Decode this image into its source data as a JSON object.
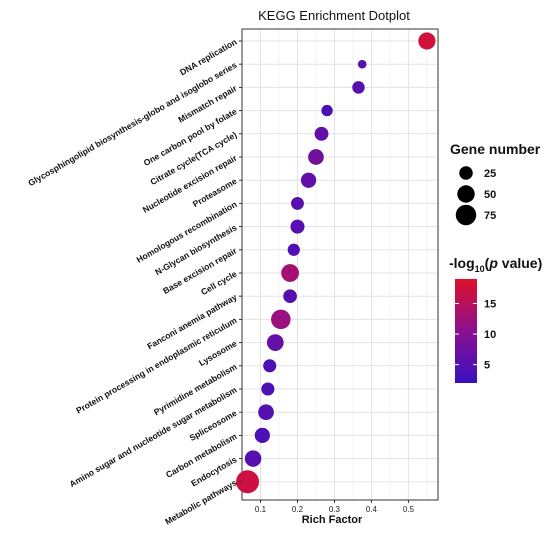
{
  "chart_data": {
    "type": "scatter",
    "title": "KEGG Enrichment Dotplot",
    "xlabel": "Rich Factor",
    "ylabel": "",
    "xlim": [
      0.05,
      0.58
    ],
    "x_ticks": [
      0.1,
      0.2,
      0.3,
      0.4,
      0.5
    ],
    "x_tick_labels": [
      "0.1",
      "0.2",
      "0.3",
      "0.4",
      "0.5"
    ],
    "grid": true,
    "categories": [
      "DNA replication",
      "Glycosphingolipid biosynthesis-globo and isoglobo series",
      "Mismatch repair",
      "One carbon pool by folate",
      "Citrate cycle(TCA cycle)",
      "Nucleotide excision repair",
      "Proteasome",
      "Homologous recombination",
      "N-Glycan biosynthesis",
      "Base excision repair",
      "Cell cycle",
      "Fanconi anemia pathway",
      "Protein processing in endoplasmic reticulum",
      "Lysosome",
      "Pyrimidine metabolism",
      "Amino sugar and nucleotide sugar metabolism",
      "Spliceosome",
      "Carbon metabolism",
      "Endocytosis",
      "Metabolic pathways"
    ],
    "rich_factor": [
      0.55,
      0.375,
      0.365,
      0.28,
      0.265,
      0.25,
      0.23,
      0.2,
      0.2,
      0.19,
      0.18,
      0.18,
      0.155,
      0.14,
      0.125,
      0.12,
      0.115,
      0.105,
      0.08,
      0.065
    ],
    "gene_number": [
      48,
      6,
      20,
      15,
      27,
      38,
      35,
      22,
      28,
      19,
      53,
      26,
      67,
      45,
      23,
      23,
      38,
      35,
      43,
      100
    ],
    "neg_log10_p": [
      17.5,
      5,
      5,
      4,
      6,
      8,
      6,
      5,
      5,
      4.5,
      13,
      5,
      12,
      6.5,
      4,
      4,
      5,
      4,
      5,
      17
    ],
    "size_legend": {
      "title": "Gene number",
      "values": [
        25,
        50,
        75
      ],
      "labels": [
        "25",
        "50",
        "75"
      ]
    },
    "color_legend": {
      "title_prefix": "-log",
      "title_sub": "10",
      "title_open": "(",
      "title_italic": "p",
      "title_rest": " value)",
      "range": [
        2,
        19
      ],
      "ticks": [
        5,
        10,
        15
      ],
      "tick_labels": [
        "5",
        "10",
        "15"
      ],
      "low_color": "#3a10c0",
      "mid_color": "#8a1090",
      "high_color": "#e0102a"
    },
    "panel_color": "#ffffff",
    "grid_color": "#e3e3e3",
    "border_color": "#333333"
  }
}
